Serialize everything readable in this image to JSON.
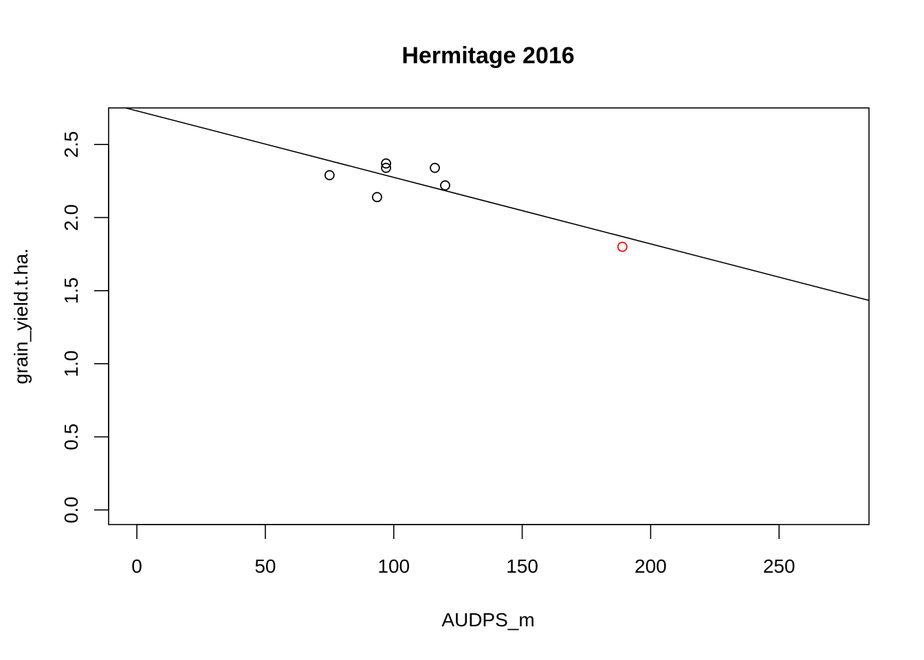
{
  "chart_data": {
    "type": "scatter",
    "title": "Hermitage 2016",
    "xlabel": "AUDPS_m",
    "ylabel": "grain_yield.t.ha.",
    "xlim": [
      -11,
      285
    ],
    "ylim": [
      -0.1,
      2.75
    ],
    "x_ticks": [
      0,
      50,
      100,
      150,
      200,
      250
    ],
    "y_ticks": [
      0.0,
      0.5,
      1.0,
      1.5,
      2.0,
      2.5
    ],
    "x_tick_labels": [
      "0",
      "50",
      "100",
      "150",
      "200",
      "250"
    ],
    "y_tick_labels": [
      "0.0",
      "0.5",
      "1.0",
      "1.5",
      "2.0",
      "2.5"
    ],
    "grid": false,
    "legend": "none",
    "points": [
      {
        "x": 75.0,
        "y": 2.29,
        "color": "#000000"
      },
      {
        "x": 93.5,
        "y": 2.14,
        "color": "#000000"
      },
      {
        "x": 97.0,
        "y": 2.37,
        "color": "#000000"
      },
      {
        "x": 97.0,
        "y": 2.34,
        "color": "#000000"
      },
      {
        "x": 116.0,
        "y": 2.34,
        "color": "#000000"
      },
      {
        "x": 120.0,
        "y": 2.22,
        "color": "#000000"
      },
      {
        "x": 189.0,
        "y": 1.8,
        "color": "#ff0000"
      }
    ],
    "regression_line": {
      "intercept": 2.73,
      "slope": -0.00455,
      "color": "#000000"
    }
  }
}
